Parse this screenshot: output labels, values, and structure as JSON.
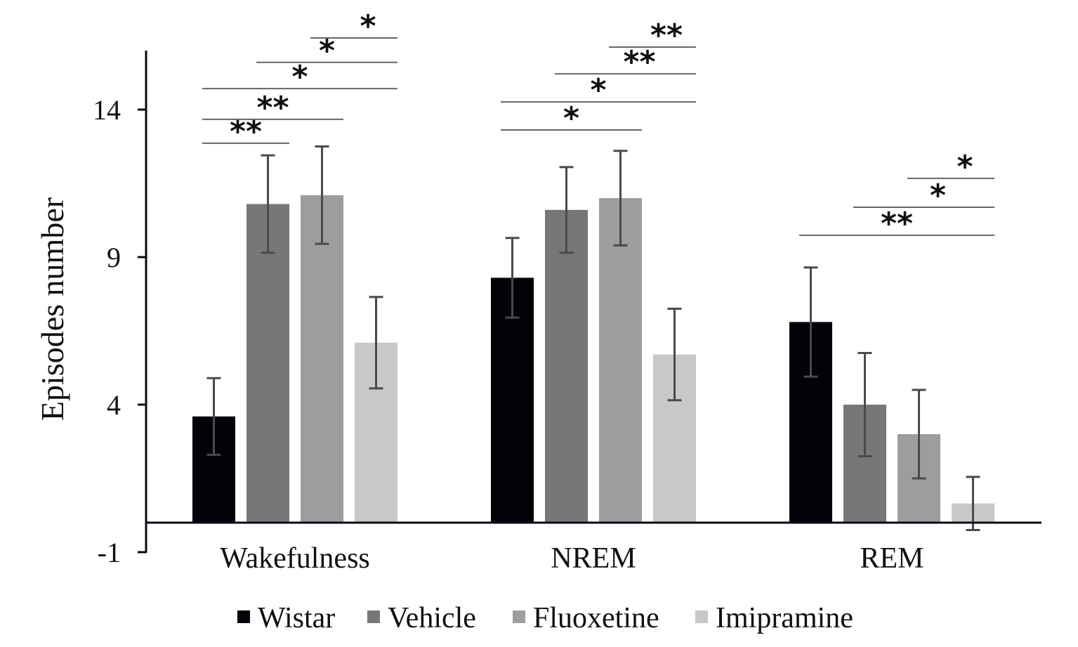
{
  "chart_data": {
    "type": "bar",
    "title": "",
    "xlabel": "",
    "ylabel": "Episodes number",
    "ylim": [
      -1,
      15.8
    ],
    "yticks": [
      14,
      9,
      4,
      -1
    ],
    "grid": false,
    "legend_position": "bottom",
    "categories": [
      "Wakefulness",
      "NREM",
      "REM"
    ],
    "series": [
      {
        "name": "Wistar",
        "color": "#020208",
        "values": [
          3.6,
          8.3,
          6.8
        ],
        "errors": [
          1.3,
          1.35,
          1.85
        ]
      },
      {
        "name": "Vehicle",
        "color": "#767779",
        "values": [
          10.8,
          10.6,
          4.0
        ],
        "errors": [
          1.65,
          1.45,
          1.75
        ]
      },
      {
        "name": "Fluoxetine",
        "color": "#9c9d9f",
        "values": [
          11.1,
          11.0,
          3.0
        ],
        "errors": [
          1.65,
          1.6,
          1.5
        ]
      },
      {
        "name": "Imipramine",
        "color": "#c8c8c8",
        "values": [
          6.1,
          5.7,
          0.65
        ],
        "errors": [
          1.55,
          1.55,
          0.9
        ]
      }
    ],
    "significance": [
      {
        "category": 0,
        "from": 0,
        "to": 1,
        "y": 12.86,
        "label": "**"
      },
      {
        "category": 0,
        "from": 0,
        "to": 2,
        "y": 13.67,
        "label": "**"
      },
      {
        "category": 0,
        "from": 0,
        "to": 3,
        "y": 14.71,
        "label": "*"
      },
      {
        "category": 0,
        "from": 1,
        "to": 3,
        "y": 15.6,
        "label": "*"
      },
      {
        "category": 0,
        "from": 2,
        "to": 3,
        "y": 16.43,
        "label": "*"
      },
      {
        "category": 1,
        "from": 0,
        "to": 2,
        "y": 13.31,
        "label": "*"
      },
      {
        "category": 1,
        "from": 0,
        "to": 3,
        "y": 14.26,
        "label": "*"
      },
      {
        "category": 1,
        "from": 1,
        "to": 3,
        "y": 15.21,
        "label": "**"
      },
      {
        "category": 1,
        "from": 2,
        "to": 3,
        "y": 16.12,
        "label": "**"
      },
      {
        "category": 2,
        "from": 0,
        "to": 3,
        "y": 9.74,
        "label": "**"
      },
      {
        "category": 2,
        "from": 1,
        "to": 3,
        "y": 10.69,
        "label": "*"
      },
      {
        "category": 2,
        "from": 2,
        "to": 3,
        "y": 11.67,
        "label": "*"
      }
    ]
  }
}
